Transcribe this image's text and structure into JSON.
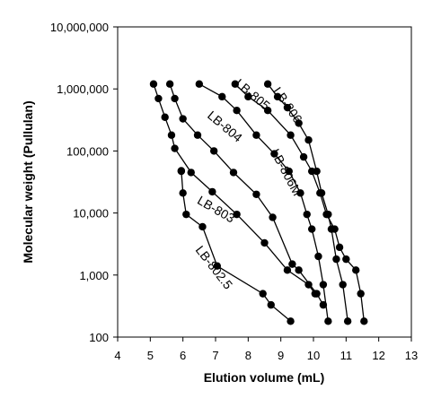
{
  "chart_data": {
    "type": "scatter",
    "title": "",
    "xlabel": "Elution volume (mL)",
    "ylabel": "Molecular weight (Pullulan)",
    "xlim": [
      4,
      13
    ],
    "ylim": [
      100,
      10000000
    ],
    "yscale": "log",
    "grid": false,
    "x_ticks": [
      4,
      5,
      6,
      7,
      8,
      9,
      10,
      11,
      12,
      13
    ],
    "x_tick_labels": [
      "4",
      "5",
      "6",
      "7",
      "8",
      "9",
      "10",
      "11",
      "12",
      "13"
    ],
    "y_ticks": [
      100,
      1000,
      10000,
      100000,
      1000000,
      10000000
    ],
    "y_tick_labels": [
      "100",
      "1,000",
      "10,000",
      "100,000",
      "1,000,000",
      "10,000,000"
    ],
    "series": [
      {
        "name": "LB-806",
        "x": [
          8.6,
          8.9,
          9.2,
          9.55,
          9.85,
          10.1,
          10.25,
          10.45,
          10.55,
          10.7,
          10.9,
          11.05
        ],
        "y": [
          1200000,
          750000,
          500000,
          280000,
          150000,
          47000,
          21000,
          9500,
          5500,
          1800,
          700,
          180
        ]
      },
      {
        "name": "LB-805",
        "x": [
          7.6,
          8.0,
          8.6,
          9.3,
          9.7,
          9.95,
          10.2,
          10.4,
          10.65,
          10.8,
          11.0,
          11.3,
          11.45,
          11.55
        ],
        "y": [
          1200000,
          750000,
          450000,
          180000,
          80000,
          47000,
          21000,
          9500,
          5500,
          2800,
          1800,
          1200,
          500,
          180
        ]
      },
      {
        "name": "LB-806M",
        "x": [
          6.5,
          7.2,
          7.65,
          8.25,
          8.8,
          9.25,
          9.6,
          9.8,
          9.95,
          10.15,
          10.3,
          10.45
        ],
        "y": [
          1200000,
          750000,
          450000,
          180000,
          90000,
          47000,
          21000,
          9500,
          5500,
          2000,
          700,
          180
        ]
      },
      {
        "name": "LB-804",
        "x": [
          5.6,
          5.75,
          6.0,
          6.45,
          6.95,
          7.55,
          8.25,
          8.75,
          9.35,
          9.55,
          10.1,
          10.3
        ],
        "y": [
          1200000,
          700000,
          330000,
          180000,
          100000,
          45000,
          20000,
          8500,
          1500,
          1200,
          500,
          330
        ]
      },
      {
        "name": "LB-803",
        "x": [
          5.1,
          5.25,
          5.45,
          5.65,
          5.75,
          6.25,
          6.9,
          7.65,
          8.5,
          9.2,
          9.85,
          10.05
        ],
        "y": [
          1200000,
          700000,
          350000,
          180000,
          110000,
          45000,
          22000,
          9500,
          3300,
          1200,
          700,
          500
        ]
      },
      {
        "name": "LB-802.5",
        "x": [
          5.95,
          5.95,
          6.0,
          6.1,
          6.6,
          7.05,
          8.45,
          8.7,
          9.3
        ],
        "y": [
          48000,
          47000,
          21000,
          9500,
          6000,
          1400,
          500,
          330,
          180
        ]
      }
    ],
    "annotations": [
      {
        "text": "LB-806",
        "x": 9.1,
        "y": 500000,
        "angle": 55
      },
      {
        "text": "LB-805",
        "x": 8.05,
        "y": 720000,
        "angle": 40
      },
      {
        "text": "LB-804",
        "x": 7.2,
        "y": 220000,
        "angle": 40
      },
      {
        "text": "LB-806M",
        "x": 9.05,
        "y": 42000,
        "angle": 62
      },
      {
        "text": "LB-803",
        "x": 6.95,
        "y": 10000,
        "angle": 30
      },
      {
        "text": "LB-802.5",
        "x": 6.85,
        "y": 1200,
        "angle": 52
      }
    ]
  }
}
